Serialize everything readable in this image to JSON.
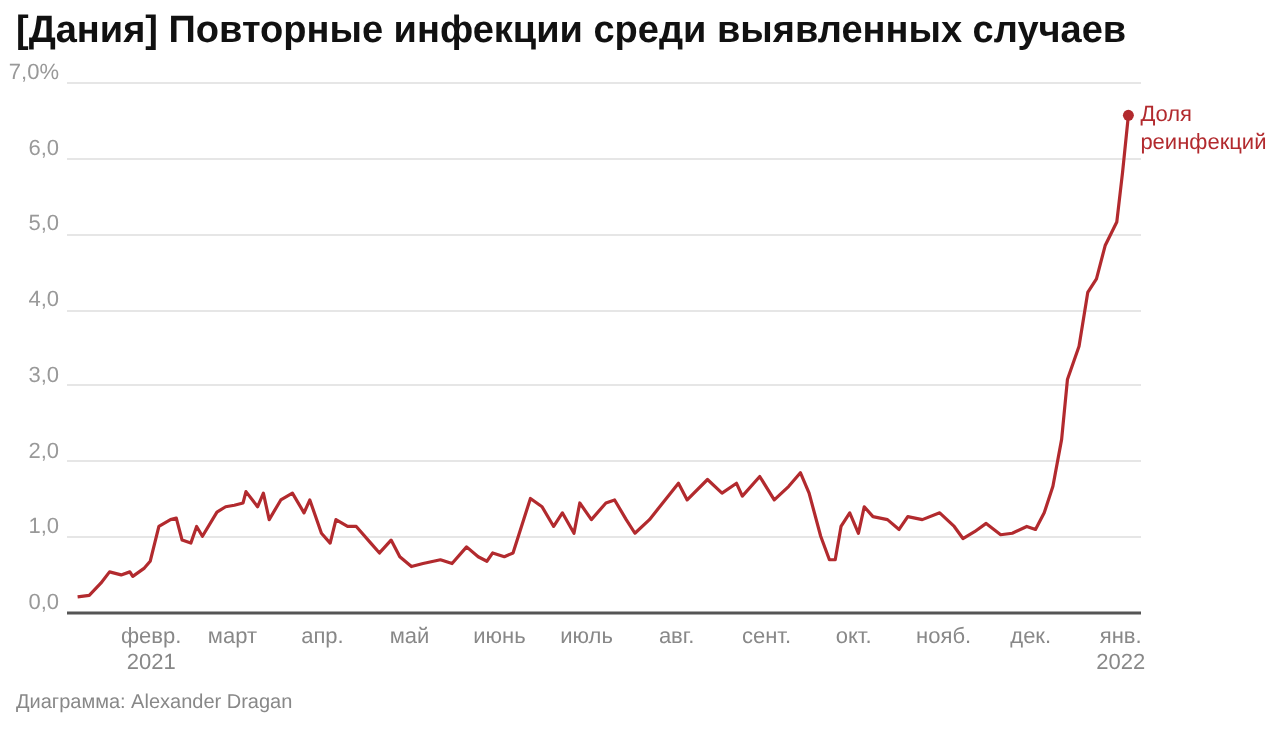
{
  "chart_data": {
    "type": "line",
    "title": "[Дания] Повторные инфекции среди выявленных случаев",
    "x": [
      "2021-01-07",
      "2021-01-11",
      "2021-01-15",
      "2021-01-18",
      "2021-01-22",
      "2021-01-25",
      "2021-01-26",
      "2021-01-30",
      "2021-02-01",
      "2021-02-04",
      "2021-02-08",
      "2021-02-10",
      "2021-02-12",
      "2021-02-15",
      "2021-02-17",
      "2021-02-19",
      "2021-02-24",
      "2021-02-27",
      "2021-03-02",
      "2021-03-05",
      "2021-03-06",
      "2021-03-10",
      "2021-03-12",
      "2021-03-14",
      "2021-03-18",
      "2021-03-22",
      "2021-03-26",
      "2021-03-28",
      "2021-04-01",
      "2021-04-04",
      "2021-04-06",
      "2021-04-10",
      "2021-04-13",
      "2021-04-18",
      "2021-04-21",
      "2021-04-25",
      "2021-04-28",
      "2021-05-02",
      "2021-05-06",
      "2021-05-12",
      "2021-05-16",
      "2021-05-21",
      "2021-05-25",
      "2021-05-28",
      "2021-05-30",
      "2021-06-03",
      "2021-06-06",
      "2021-06-12",
      "2021-06-16",
      "2021-06-20",
      "2021-06-23",
      "2021-06-27",
      "2021-06-29",
      "2021-07-03",
      "2021-07-08",
      "2021-07-11",
      "2021-07-15",
      "2021-07-18",
      "2021-07-23",
      "2021-08-02",
      "2021-08-05",
      "2021-08-12",
      "2021-08-17",
      "2021-08-22",
      "2021-08-24",
      "2021-08-30",
      "2021-09-04",
      "2021-09-09",
      "2021-09-13",
      "2021-09-16",
      "2021-09-20",
      "2021-09-23",
      "2021-09-25",
      "2021-09-27",
      "2021-09-30",
      "2021-10-03",
      "2021-10-05",
      "2021-10-08",
      "2021-10-13",
      "2021-10-17",
      "2021-10-20",
      "2021-10-25",
      "2021-10-31",
      "2021-11-05",
      "2021-11-08",
      "2021-11-12",
      "2021-11-16",
      "2021-11-21",
      "2021-11-25",
      "2021-11-30",
      "2021-12-03",
      "2021-12-06",
      "2021-12-09",
      "2021-12-12",
      "2021-12-14",
      "2021-12-18",
      "2021-12-21",
      "2021-12-24",
      "2021-12-27",
      "2021-12-31",
      "2022-01-02",
      "2022-01-04"
    ],
    "series": [
      {
        "color": "#b22a2e",
        "values": [
          0.2,
          0.22,
          0.38,
          0.53,
          0.49,
          0.53,
          0.47,
          0.58,
          0.67,
          1.13,
          1.22,
          1.24,
          0.95,
          0.91,
          1.13,
          1.0,
          1.32,
          1.39,
          1.41,
          1.44,
          1.59,
          1.39,
          1.57,
          1.22,
          1.48,
          1.57,
          1.31,
          1.48,
          1.04,
          0.91,
          1.22,
          1.13,
          1.13,
          0.91,
          0.78,
          0.95,
          0.73,
          0.6,
          0.64,
          0.69,
          0.64,
          0.86,
          0.73,
          0.67,
          0.78,
          0.73,
          0.78,
          1.5,
          1.39,
          1.13,
          1.31,
          1.04,
          1.44,
          1.22,
          1.44,
          1.48,
          1.22,
          1.04,
          1.22,
          1.7,
          1.48,
          1.75,
          1.57,
          1.7,
          1.53,
          1.79,
          1.48,
          1.66,
          1.84,
          1.57,
          1.0,
          0.69,
          0.69,
          1.13,
          1.31,
          1.04,
          1.39,
          1.26,
          1.22,
          1.09,
          1.26,
          1.22,
          1.31,
          1.13,
          0.97,
          1.06,
          1.17,
          1.02,
          1.04,
          1.13,
          1.09,
          1.31,
          1.66,
          2.28,
          3.07,
          3.51,
          4.22,
          4.4,
          4.84,
          5.15,
          5.81,
          6.56
        ]
      }
    ],
    "xlim": [
      "2021-01-03",
      "2022-01-08"
    ],
    "xticks": [
      {
        "value": "2021-02-01",
        "label": "февр. 2021"
      },
      {
        "value": "2021-03-01",
        "label": "март"
      },
      {
        "value": "2021-04-01",
        "label": "апр."
      },
      {
        "value": "2021-05-01",
        "label": "май"
      },
      {
        "value": "2021-06-01",
        "label": "июнь"
      },
      {
        "value": "2021-07-01",
        "label": "июль"
      },
      {
        "value": "2021-08-01",
        "label": "авг."
      },
      {
        "value": "2021-09-01",
        "label": "сент."
      },
      {
        "value": "2021-10-01",
        "label": "окт."
      },
      {
        "value": "2021-11-01",
        "label": "нояб."
      },
      {
        "value": "2021-12-01",
        "label": "дек."
      },
      {
        "value": "2022-01-01",
        "label": "янв. 2022"
      }
    ],
    "ylim": [
      0,
      7
    ],
    "yticks": [
      {
        "value": 0,
        "label": "0,0"
      },
      {
        "value": 1,
        "label": "1,0"
      },
      {
        "value": 2,
        "label": "2,0"
      },
      {
        "value": 3,
        "label": "3,0"
      },
      {
        "value": 4,
        "label": "4,0"
      },
      {
        "value": 5,
        "label": "5,0"
      },
      {
        "value": 6,
        "label": "6,0"
      },
      {
        "value": 7,
        "label": "7,0%"
      }
    ],
    "grid": "y",
    "annotations": [
      {
        "text": "Доля реинфекций",
        "x": "2022-01-04",
        "y": 6.56
      },
      "Диаграмма: Alexander Dragan"
    ]
  }
}
